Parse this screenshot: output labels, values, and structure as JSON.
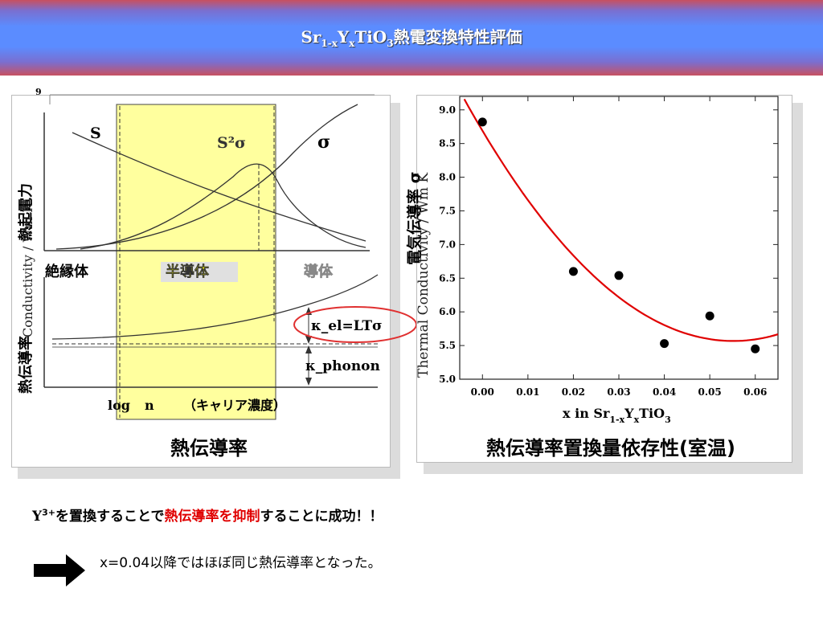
{
  "slide": {
    "title_prefix": "Sr",
    "title_sub1": "1-x",
    "title_mid": "Y",
    "title_sub2": "x",
    "title_mid2": "TiO",
    "title_sub3": "3",
    "title_suffix": "熱電変換特性評価"
  },
  "left_panel": {
    "caption": "熱伝導率",
    "axis_top_label": "9",
    "ylabel_upper": "熱起電力",
    "ylabel_lower": "熱伝導率",
    "ylabel_unit_overlap": "Conductivity / Wm K",
    "curve_S": "S",
    "curve_S2sigma": "S²σ",
    "curve_sigma": "σ",
    "region_insulator": "絶縁体",
    "region_semiconductor": "半導体",
    "region_conductor": "導体",
    "kappa_el": "κ_el=LTσ",
    "kappa_phonon": "κ_phonon",
    "xlabel_log": "log",
    "xlabel_n": "n",
    "xlabel_carrier": "（キャリア濃度）"
  },
  "right_panel": {
    "caption": "熱伝導率置換量依存性(室温)",
    "ylabel_left": "電気伝導率 σ",
    "ylabel_overlap": "Thermal Conductivity / Wm K",
    "xlabel_prefix": "x in Sr",
    "xlabel_sub1": "1-x",
    "xlabel_mid": "Y",
    "xlabel_sub2": "x",
    "xlabel_mid2": "TiO",
    "xlabel_sub3": "3"
  },
  "chart_data": {
    "type": "scatter",
    "x_ticks": [
      "0.00",
      "0.01",
      "0.02",
      "0.03",
      "0.04",
      "0.05",
      "0.06"
    ],
    "y_ticks": [
      "5.0",
      "5.5",
      "6.0",
      "6.5",
      "7.0",
      "7.5",
      "8.0",
      "8.5",
      "9.0"
    ],
    "xlim": [
      -0.005,
      0.065
    ],
    "ylim": [
      5.0,
      9.2
    ],
    "points": [
      {
        "x": 0.0,
        "y": 8.82
      },
      {
        "x": 0.02,
        "y": 6.6
      },
      {
        "x": 0.03,
        "y": 6.54
      },
      {
        "x": 0.04,
        "y": 5.53
      },
      {
        "x": 0.05,
        "y": 5.94
      },
      {
        "x": 0.06,
        "y": 5.45
      }
    ],
    "fit_curve": {
      "color": "#e00000",
      "a": 1026,
      "b": -113.2,
      "c": 8.69
    }
  },
  "messages": {
    "line1_y": "Y",
    "line1_sup": "3+",
    "line1_a": "を置換することで",
    "line1_red": "熱伝導率を抑制",
    "line1_b": "することに成功！！",
    "line2": "x=0.04以降ではほぼ同じ熱伝導率となった。"
  },
  "colors": {
    "highlight": "#ffff9e",
    "fit": "#e00000",
    "arrow": "#000000"
  }
}
